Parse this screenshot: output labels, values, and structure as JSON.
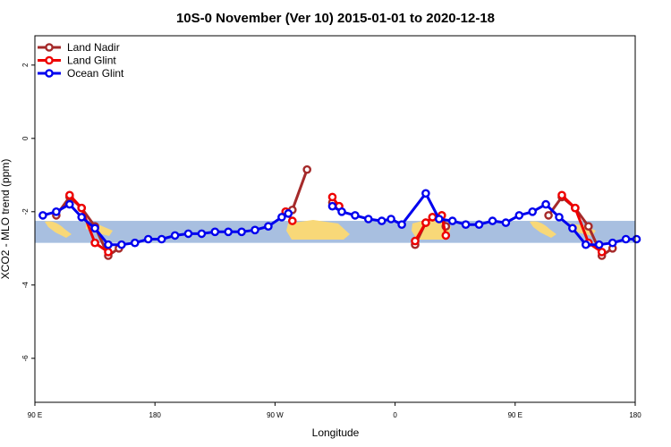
{
  "chart_data": {
    "type": "line",
    "title": "10S-0 November (Ver 10)   2015-01-01 to 2020-12-18",
    "xlabel": "Longitude",
    "ylabel": "XCO2 - MLO trend (ppm)",
    "xlim": [
      90,
      540
    ],
    "ylim": [
      -7.2,
      2.8
    ],
    "x_ticks": [
      {
        "value": 90,
        "label": "90 E"
      },
      {
        "value": 180,
        "label": "180"
      },
      {
        "value": 270,
        "label": "90 W"
      },
      {
        "value": 360,
        "label": "0"
      },
      {
        "value": 450,
        "label": "90 E"
      },
      {
        "value": 540,
        "label": "180"
      }
    ],
    "y_ticks": [
      {
        "value": 2,
        "label": "2"
      },
      {
        "value": 0,
        "label": "0"
      },
      {
        "value": -2,
        "label": "-2"
      },
      {
        "value": -4,
        "label": "-4"
      },
      {
        "value": -6,
        "label": "-6"
      }
    ],
    "latitude_band": {
      "y_range": [
        -2.85,
        -2.25
      ],
      "color": "#a8bfe0",
      "land_color": "#f8d878"
    },
    "legend": {
      "position": "top-left"
    },
    "series": [
      {
        "name": "Land Nadir",
        "color": "#a52a2a",
        "segments": [
          [
            [
              106,
              -2.1
            ],
            [
              116,
              -1.6
            ],
            [
              125,
              -1.9
            ],
            [
              135,
              -2.4
            ],
            [
              145,
              -3.2
            ],
            [
              153,
              -3.0
            ]
          ],
          [
            [
              278,
              -2.0
            ],
            [
              283,
              -1.95
            ],
            [
              294,
              -0.85
            ]
          ],
          [
            [
              313,
              -1.75
            ],
            [
              318,
              -1.85
            ]
          ],
          [
            [
              375,
              -2.9
            ],
            [
              383,
              -2.3
            ],
            [
              388,
              -2.15
            ],
            [
              395,
              -2.1
            ],
            [
              398,
              -2.4
            ]
          ],
          [
            [
              475,
              -2.1
            ],
            [
              485,
              -1.6
            ],
            [
              495,
              -1.9
            ],
            [
              505,
              -2.4
            ],
            [
              515,
              -3.2
            ],
            [
              523,
              -3.0
            ]
          ]
        ]
      },
      {
        "name": "Land Glint",
        "color": "#ee0000",
        "segments": [
          [
            [
              116,
              -1.55
            ],
            [
              125,
              -1.9
            ],
            [
              135,
              -2.85
            ],
            [
              145,
              -3.1
            ]
          ],
          [
            [
              278,
              -2.0
            ],
            [
              283,
              -2.25
            ]
          ],
          [
            [
              313,
              -1.6
            ],
            [
              318,
              -1.85
            ]
          ],
          [
            [
              375,
              -2.8
            ],
            [
              383,
              -2.3
            ],
            [
              388,
              -2.15
            ],
            [
              395,
              -2.1
            ],
            [
              398,
              -2.65
            ]
          ],
          [
            [
              485,
              -1.55
            ],
            [
              495,
              -1.9
            ],
            [
              505,
              -2.85
            ],
            [
              515,
              -3.1
            ]
          ]
        ]
      },
      {
        "name": "Ocean Glint",
        "color": "#0000ee",
        "segments": [
          [
            [
              96,
              -2.1
            ],
            [
              106,
              -2.0
            ],
            [
              116,
              -1.8
            ],
            [
              125,
              -2.15
            ],
            [
              135,
              -2.45
            ],
            [
              145,
              -2.9
            ],
            [
              155,
              -2.9
            ],
            [
              165,
              -2.85
            ],
            [
              175,
              -2.75
            ],
            [
              185,
              -2.75
            ],
            [
              195,
              -2.65
            ],
            [
              205,
              -2.6
            ],
            [
              215,
              -2.6
            ],
            [
              225,
              -2.55
            ],
            [
              235,
              -2.55
            ],
            [
              245,
              -2.55
            ],
            [
              255,
              -2.5
            ],
            [
              265,
              -2.4
            ],
            [
              275,
              -2.15
            ],
            [
              280,
              -2.05
            ]
          ],
          [
            [
              313,
              -1.85
            ],
            [
              320,
              -2.0
            ],
            [
              330,
              -2.1
            ],
            [
              340,
              -2.2
            ],
            [
              350,
              -2.25
            ],
            [
              357,
              -2.2
            ],
            [
              365,
              -2.35
            ],
            [
              383,
              -1.5
            ],
            [
              393,
              -2.2
            ],
            [
              403,
              -2.25
            ],
            [
              413,
              -2.35
            ],
            [
              423,
              -2.35
            ],
            [
              433,
              -2.25
            ],
            [
              443,
              -2.3
            ],
            [
              453,
              -2.1
            ],
            [
              463,
              -2.0
            ],
            [
              473,
              -1.8
            ],
            [
              483,
              -2.15
            ],
            [
              493,
              -2.45
            ],
            [
              503,
              -2.9
            ],
            [
              513,
              -2.9
            ],
            [
              523,
              -2.85
            ],
            [
              533,
              -2.75
            ],
            [
              541,
              -2.75
            ]
          ]
        ]
      }
    ]
  }
}
